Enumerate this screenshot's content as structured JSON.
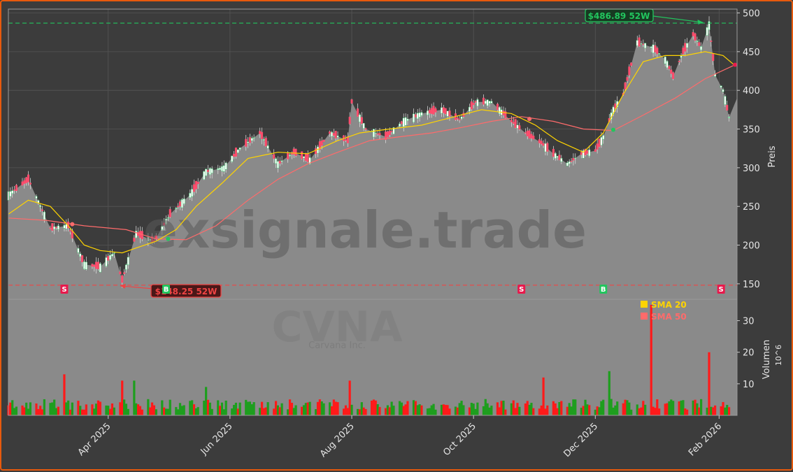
{
  "watermark": {
    "site": "exsignale.trade",
    "ticker": "CVNA",
    "company": "Carvana Inc."
  },
  "colors": {
    "up": "#1e9e1e",
    "down": "#ff1a1a",
    "sma20": "#ffd400",
    "sma50": "#ff6b6b",
    "high": "#22c55e",
    "low": "#ef4444",
    "buy": "#22c55e",
    "sell": "#e8194c",
    "price_area": "#8a8a8a",
    "background": "#3c3c3c"
  },
  "chart_data": [
    {
      "type": "line",
      "title": "",
      "ylabel": "Preis",
      "xlabel": "",
      "ylim": [
        130,
        505
      ],
      "yticks": [
        150,
        200,
        250,
        300,
        350,
        400,
        450,
        500
      ],
      "x_range": [
        "2025-02-10",
        "2026-02-10"
      ],
      "grid": true,
      "price": {
        "dates": [
          "2025-02-10",
          "2025-02-20",
          "2025-03-03",
          "2025-03-12",
          "2025-03-20",
          "2025-03-28",
          "2025-04-04",
          "2025-04-08",
          "2025-04-15",
          "2025-04-24",
          "2025-05-02",
          "2025-05-12",
          "2025-05-20",
          "2025-05-29",
          "2025-06-06",
          "2025-06-16",
          "2025-06-25",
          "2025-07-03",
          "2025-07-11",
          "2025-07-21",
          "2025-07-30",
          "2025-08-01",
          "2025-08-08",
          "2025-08-18",
          "2025-08-27",
          "2025-09-05",
          "2025-09-15",
          "2025-09-24",
          "2025-10-02",
          "2025-10-10",
          "2025-10-20",
          "2025-10-27",
          "2025-11-04",
          "2025-11-10",
          "2025-11-17",
          "2025-11-24",
          "2025-12-01",
          "2025-12-05",
          "2025-12-10",
          "2025-12-15",
          "2025-12-22",
          "2025-12-30",
          "2026-01-05",
          "2026-01-09",
          "2026-01-14",
          "2026-01-19",
          "2026-01-23",
          "2026-01-27",
          "2026-01-30",
          "2026-02-03",
          "2026-02-06",
          "2026-02-10"
        ],
        "close": [
          265,
          285,
          222,
          225,
          175,
          172,
          190,
          155,
          215,
          205,
          240,
          265,
          295,
          300,
          325,
          345,
          305,
          320,
          310,
          345,
          335,
          385,
          350,
          340,
          360,
          370,
          375,
          362,
          385,
          385,
          360,
          345,
          332,
          318,
          305,
          318,
          322,
          340,
          375,
          395,
          462,
          455,
          440,
          418,
          450,
          472,
          455,
          485,
          420,
          400,
          365,
          390
        ]
      },
      "sma20": {
        "dates": [
          "2025-02-10",
          "2025-02-20",
          "2025-03-03",
          "2025-03-12",
          "2025-03-20",
          "2025-03-28",
          "2025-04-08",
          "2025-04-17",
          "2025-04-25",
          "2025-05-05",
          "2025-05-15",
          "2025-05-28",
          "2025-06-10",
          "2025-06-25",
          "2025-07-10",
          "2025-07-25",
          "2025-08-05",
          "2025-08-20",
          "2025-09-05",
          "2025-09-20",
          "2025-10-05",
          "2025-10-20",
          "2025-11-01",
          "2025-11-12",
          "2025-11-25",
          "2025-12-05",
          "2025-12-15",
          "2025-12-25",
          "2026-01-05",
          "2026-01-15",
          "2026-01-25",
          "2026-02-03",
          "2026-02-09"
        ],
        "values": [
          240,
          258,
          250,
          225,
          200,
          193,
          190,
          198,
          205,
          220,
          250,
          280,
          312,
          320,
          318,
          335,
          345,
          350,
          355,
          365,
          375,
          370,
          355,
          335,
          320,
          345,
          395,
          437,
          445,
          445,
          450,
          445,
          432
        ]
      },
      "sma50": {
        "dates": [
          "2025-02-10",
          "2025-03-01",
          "2025-03-20",
          "2025-04-10",
          "2025-04-25",
          "2025-05-10",
          "2025-05-25",
          "2025-06-10",
          "2025-06-25",
          "2025-07-10",
          "2025-07-25",
          "2025-08-10",
          "2025-08-25",
          "2025-09-10",
          "2025-09-25",
          "2025-10-10",
          "2025-10-25",
          "2025-11-10",
          "2025-11-25",
          "2025-12-10",
          "2025-12-25",
          "2026-01-10",
          "2026-01-25",
          "2026-02-09"
        ],
        "values": [
          235,
          232,
          225,
          220,
          208,
          207,
          225,
          258,
          285,
          305,
          320,
          335,
          340,
          345,
          352,
          360,
          366,
          360,
          350,
          348,
          368,
          390,
          415,
          433
        ]
      },
      "high_52w": {
        "value": 486.89,
        "label": "$486.89 52W",
        "date": "2026-01-24"
      },
      "low_52w": {
        "value": 148.25,
        "label": "$148.25 52W",
        "date": "2025-04-07"
      },
      "signals": [
        {
          "type": "S",
          "date": "2025-03-10"
        },
        {
          "type": "B",
          "date": "2025-04-30"
        },
        {
          "type": "S",
          "date": "2025-10-25"
        },
        {
          "type": "B",
          "date": "2025-12-05"
        },
        {
          "type": "S",
          "date": "2026-02-02"
        }
      ],
      "crossovers": [
        {
          "date": "2025-03-14",
          "value": 227,
          "color": "#ff6b6b"
        },
        {
          "date": "2025-05-01",
          "value": 208,
          "color": "#22c55e"
        },
        {
          "date": "2025-10-29",
          "value": 363,
          "color": "#ff6b6b"
        },
        {
          "date": "2025-12-10",
          "value": 349,
          "color": "#22c55e"
        },
        {
          "date": "2026-02-09",
          "value": 433,
          "color": "#e8194c"
        }
      ]
    },
    {
      "type": "bar",
      "title": "",
      "ylabel": "Volumen",
      "yunit": "10^6",
      "ylim": [
        0,
        35
      ],
      "yticks": [
        10,
        20,
        30
      ],
      "legend": {
        "position": "top-right",
        "entries": [
          {
            "label": "SMA 20",
            "color": "#ffd400"
          },
          {
            "label": "SMA 50",
            "color": "#ff6b6b"
          }
        ]
      },
      "x_ticks": [
        {
          "date": "2025-04-01",
          "label": "Apr 2025"
        },
        {
          "date": "2025-06-01",
          "label": "Jun 2025"
        },
        {
          "date": "2025-08-01",
          "label": "Aug 2025"
        },
        {
          "date": "2025-10-01",
          "label": "Oct 2025"
        },
        {
          "date": "2025-12-01",
          "label": "Dec 2025"
        },
        {
          "date": "2026-02-01",
          "label": "Feb 2026"
        }
      ],
      "spikes": [
        {
          "date": "2025-03-10",
          "value": 13,
          "dir": "down"
        },
        {
          "date": "2025-04-08",
          "value": 11,
          "dir": "down"
        },
        {
          "date": "2025-04-14",
          "value": 11,
          "dir": "up"
        },
        {
          "date": "2025-05-20",
          "value": 9,
          "dir": "up"
        },
        {
          "date": "2025-07-31",
          "value": 11,
          "dir": "down"
        },
        {
          "date": "2025-11-05",
          "value": 12,
          "dir": "down"
        },
        {
          "date": "2025-12-08",
          "value": 14,
          "dir": "up"
        },
        {
          "date": "2025-12-29",
          "value": 35,
          "dir": "down"
        },
        {
          "date": "2026-01-27",
          "value": 20,
          "dir": "down"
        }
      ]
    }
  ]
}
